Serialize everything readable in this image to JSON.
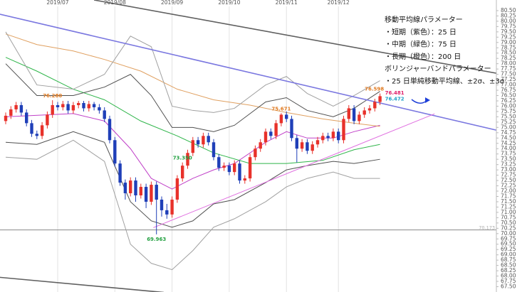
{
  "chart_data": {
    "type": "candlestick",
    "up_color": "#e8312a",
    "down_color": "#1f3fb8",
    "categories": [
      null,
      null,
      null,
      null,
      null,
      null,
      null,
      null,
      null,
      null,
      "2019/07",
      null,
      null,
      null,
      null,
      null,
      null,
      null,
      null,
      null,
      null,
      "2019/08",
      null,
      null,
      null,
      null,
      null,
      null,
      null,
      null,
      null,
      null,
      "2019/09",
      null,
      null,
      null,
      null,
      null,
      null,
      null,
      null,
      null,
      null,
      "2019/10",
      null,
      null,
      null,
      null,
      null,
      null,
      null,
      null,
      null,
      null,
      "2019/11",
      null,
      null,
      null,
      null,
      null,
      null,
      null,
      null,
      null,
      "2019/12",
      null,
      null,
      null,
      null,
      null,
      null,
      null,
      null
    ],
    "open": [
      75.3,
      75.55,
      75.85,
      76.05,
      75.7,
      75.2,
      74.7,
      74.6,
      75.1,
      75.6,
      76.05,
      75.95,
      76.1,
      75.8,
      76.05,
      76.15,
      75.9,
      76.1,
      75.95,
      75.8,
      75.4,
      74.4,
      73.3,
      72.4,
      71.9,
      72.5,
      71.8,
      72.2,
      71.5,
      72.3,
      71.6,
      71.1,
      70.9,
      71.6,
      72.6,
      73.2,
      73.8,
      74.4,
      74.2,
      74.6,
      74.3,
      73.6,
      73.1,
      73.2,
      72.9,
      73.3,
      72.5,
      72.6,
      73.6,
      74.0,
      74.3,
      74.8,
      74.6,
      75.2,
      75.6,
      75.4,
      74.5,
      74.0,
      74.3,
      73.9,
      74.2,
      74.4,
      74.6,
      74.5,
      74.8,
      74.4,
      75.4,
      75.9,
      75.3,
      75.6,
      75.8,
      75.9,
      76.2
    ],
    "high": [
      75.7,
      76.0,
      76.2,
      76.2,
      75.85,
      75.35,
      74.85,
      75.25,
      75.75,
      76.28,
      76.2,
      76.25,
      76.25,
      76.2,
      76.25,
      76.25,
      76.25,
      76.2,
      76.1,
      75.95,
      75.55,
      74.55,
      73.45,
      72.55,
      72.65,
      72.65,
      72.35,
      72.35,
      72.45,
      72.45,
      71.75,
      71.4,
      71.75,
      72.75,
      73.35,
      73.95,
      74.55,
      74.55,
      74.75,
      74.75,
      74.45,
      73.75,
      73.35,
      73.35,
      73.45,
      73.45,
      72.75,
      73.75,
      74.15,
      74.45,
      74.95,
      74.95,
      75.35,
      75.671,
      75.75,
      75.55,
      74.65,
      74.45,
      74.45,
      74.35,
      74.55,
      74.75,
      74.75,
      74.95,
      74.95,
      75.55,
      76.05,
      76.05,
      75.75,
      75.95,
      76.05,
      76.35,
      76.598
    ],
    "low": [
      75.15,
      75.4,
      75.7,
      75.55,
      75.05,
      74.55,
      74.45,
      74.45,
      74.95,
      75.45,
      75.8,
      75.8,
      75.65,
      75.65,
      75.9,
      75.75,
      75.75,
      75.8,
      75.65,
      75.25,
      74.25,
      73.15,
      72.25,
      71.6,
      71.75,
      71.5,
      71.65,
      71.2,
      71.35,
      69.963,
      70.8,
      70.7,
      70.75,
      71.45,
      72.45,
      73.05,
      73.65,
      74.05,
      74.05,
      74.15,
      73.45,
      72.95,
      72.95,
      72.75,
      72.75,
      72.35,
      72.35,
      72.45,
      73.45,
      73.85,
      74.15,
      74.45,
      74.45,
      75.05,
      75.25,
      74.35,
      73.35,
      73.85,
      73.75,
      73.75,
      74.05,
      74.25,
      74.35,
      74.35,
      74.25,
      74.25,
      75.25,
      75.15,
      75.15,
      75.45,
      75.65,
      75.75,
      76.05
    ],
    "close": [
      75.55,
      75.85,
      76.05,
      75.7,
      75.2,
      74.7,
      74.6,
      75.1,
      75.6,
      76.05,
      75.95,
      76.1,
      75.8,
      76.05,
      76.15,
      75.9,
      76.1,
      75.95,
      75.8,
      75.4,
      74.4,
      73.3,
      72.4,
      71.9,
      72.5,
      71.8,
      72.2,
      71.5,
      72.3,
      71.6,
      71.1,
      70.9,
      71.6,
      72.6,
      73.2,
      73.8,
      74.4,
      74.2,
      74.6,
      74.3,
      73.6,
      73.1,
      73.2,
      72.9,
      73.3,
      72.5,
      72.6,
      73.6,
      74.0,
      74.3,
      74.8,
      74.6,
      75.2,
      75.6,
      75.4,
      74.5,
      74.0,
      74.3,
      73.9,
      74.2,
      74.4,
      74.6,
      74.5,
      74.8,
      74.4,
      75.4,
      75.9,
      75.3,
      75.6,
      75.8,
      75.9,
      76.2,
      76.472
    ],
    "lines": [
      {
        "color": "#c040c8",
        "width": 1,
        "x": [
          0,
          13,
          19,
          24,
          28,
          32,
          36,
          40,
          44,
          50,
          54,
          58,
          63,
          67,
          72
        ],
        "values": [
          75.5,
          75.65,
          75.3,
          74.0,
          72.6,
          72.1,
          72.6,
          73.0,
          73.3,
          74.3,
          74.8,
          74.5,
          74.5,
          74.8,
          75.1
        ]
      },
      {
        "color": "#2fb54a",
        "width": 1,
        "x": [
          0,
          6,
          13,
          19,
          26,
          33,
          40,
          47,
          54,
          61,
          67,
          72
        ],
        "values": [
          78.3,
          77.65,
          76.8,
          76.3,
          75.3,
          74.6,
          73.8,
          73.3,
          73.3,
          73.45,
          73.95,
          74.2
        ]
      },
      {
        "color": "#e0a060",
        "width": 1,
        "x": [
          0,
          6,
          13,
          19,
          26,
          33,
          40,
          47,
          54,
          61,
          67,
          72
        ],
        "values": [
          79.4,
          78.9,
          78.6,
          78.2,
          77.65,
          76.8,
          76.3,
          76.05,
          75.7,
          75.4,
          75.2,
          75.05
        ]
      },
      {
        "color": "#a0a0a0",
        "width": 1,
        "x": [
          0,
          6,
          13,
          19,
          24,
          28,
          32,
          36,
          40,
          44,
          50,
          54,
          58,
          63,
          67,
          72
        ],
        "values": [
          79.5,
          77.0,
          76.8,
          77.5,
          79.3,
          78.8,
          76.0,
          75.8,
          75.7,
          75.9,
          77.0,
          77.4,
          76.6,
          76.0,
          76.5,
          77.2
        ]
      },
      {
        "color": "#505050",
        "width": 1,
        "x": [
          0,
          6,
          13,
          19,
          24,
          28,
          32,
          36,
          40,
          44,
          50,
          54,
          58,
          63,
          67,
          72
        ],
        "values": [
          78.0,
          76.5,
          76.5,
          76.9,
          77.5,
          76.5,
          75.0,
          75.0,
          74.8,
          75.1,
          76.2,
          76.4,
          75.8,
          75.5,
          75.9,
          76.7
        ]
      },
      {
        "color": "#505050",
        "width": 1,
        "x": [
          0,
          6,
          13,
          19,
          24,
          28,
          32,
          36,
          40,
          44,
          50,
          54,
          58,
          63,
          67,
          72
        ],
        "values": [
          74.3,
          74.2,
          74.8,
          74.3,
          71.5,
          70.6,
          70.3,
          70.6,
          71.4,
          71.6,
          72.4,
          73.0,
          73.2,
          73.4,
          73.3,
          73.5
        ]
      },
      {
        "color": "#a0a0a0",
        "width": 1,
        "x": [
          0,
          6,
          13,
          19,
          24,
          28,
          32,
          36,
          40,
          44,
          50,
          54,
          58,
          63,
          67,
          72
        ],
        "values": [
          73.6,
          73.5,
          74.4,
          73.4,
          69.5,
          68.6,
          68.3,
          69.2,
          70.3,
          70.7,
          71.5,
          72.2,
          72.6,
          72.9,
          72.6,
          72.6
        ]
      },
      {
        "color": "#7b78e0",
        "width": 1.6,
        "x": [
          -1.1,
          94.4
        ],
        "values": [
          80.33,
          74.87
        ]
      },
      {
        "color": "#606060",
        "width": 1.6,
        "x": [
          17,
          94.4
        ],
        "values": [
          81.0,
          77.55
        ]
      },
      {
        "color": "#606060",
        "width": 1.6,
        "x": [
          -1.1,
          30.4
        ],
        "values": [
          67.94,
          67.23
        ]
      },
      {
        "color": "#e070e0",
        "width": 1,
        "x": [
          28.4,
          82.5
        ],
        "values": [
          70.28,
          75.64
        ]
      }
    ],
    "annotations": [
      {
        "value": 76.28,
        "label": "76.280",
        "color": "#e07a20"
      },
      {
        "value": 69.963,
        "label": "69.963",
        "color": "#22a040"
      },
      {
        "value": 75.671,
        "label": "75.671",
        "color": "#e07a20"
      },
      {
        "value": 73.35,
        "label": "73.350",
        "color": "#22a040"
      },
      {
        "value": 76.598,
        "label": "76.598",
        "color": "#e07a20"
      }
    ],
    "price_labels": [
      {
        "value": 76.481,
        "label": "76.481",
        "color": "#e0206a"
      },
      {
        "value": 76.472,
        "label": "76.472",
        "color": "#1fa0c8"
      }
    ],
    "hline": {
      "value": 70.173,
      "label": "70.173"
    },
    "notes": [
      "移動平均線パラメーター",
      "・短期（紫色）：25 日",
      "・中期（緑色）：75 日",
      "・長期（橙色）：200 日",
      "ボリンジャーバンドパラメーター",
      "・25 日単純移動平均線、±2σ、±3σ"
    ],
    "ylim": [
      67.25,
      81.0
    ],
    "yticks": [
      {
        "value": 80.5,
        "label": "80.50"
      },
      {
        "value": 80.25,
        "label": "80.25"
      },
      {
        "value": 80,
        "label": "80.00"
      },
      {
        "value": 79.75,
        "label": "79.75"
      },
      {
        "value": 79.5,
        "label": "79.50"
      },
      {
        "value": 79.25,
        "label": "79.25"
      },
      {
        "value": 79,
        "label": "79.00"
      },
      {
        "value": 78.75,
        "label": "78.75"
      },
      {
        "value": 78.5,
        "label": "78.50"
      },
      {
        "value": 78.25,
        "label": "78.25"
      },
      {
        "value": 78,
        "label": "78.00"
      },
      {
        "value": 77.75,
        "label": "77.75"
      },
      {
        "value": 77.5,
        "label": "77.50"
      },
      {
        "value": 77.25,
        "label": "77.25"
      },
      {
        "value": 77,
        "label": "77.00"
      },
      {
        "value": 76.75,
        "label": "76.75"
      },
      {
        "value": 76.5,
        "label": "76.50"
      },
      {
        "value": 76.25,
        "label": "76.25"
      },
      {
        "value": 76,
        "label": "76.00"
      },
      {
        "value": 75.75,
        "label": "75.75"
      },
      {
        "value": 75.5,
        "label": "75.50"
      },
      {
        "value": 75.25,
        "label": "75.25"
      },
      {
        "value": 75,
        "label": "75.00"
      },
      {
        "value": 74.75,
        "label": "74.75"
      },
      {
        "value": 74.5,
        "label": "74.50"
      },
      {
        "value": 74.25,
        "label": "74.25"
      },
      {
        "value": 74,
        "label": "74.00"
      },
      {
        "value": 73.75,
        "label": "73.75"
      },
      {
        "value": 73.5,
        "label": "73.50"
      },
      {
        "value": 73.25,
        "label": "73.25"
      },
      {
        "value": 73,
        "label": "73.00"
      },
      {
        "value": 72.75,
        "label": "72.75"
      },
      {
        "value": 72.5,
        "label": "72.50"
      },
      {
        "value": 72.25,
        "label": "72.25"
      },
      {
        "value": 72,
        "label": "72.00"
      },
      {
        "value": 71.75,
        "label": "71.75"
      },
      {
        "value": 71.5,
        "label": "71.50"
      },
      {
        "value": 71.25,
        "label": "71.25"
      },
      {
        "value": 71,
        "label": "71.00"
      },
      {
        "value": 70.75,
        "label": "70.75"
      },
      {
        "value": 70.5,
        "label": "70.50"
      },
      {
        "value": 70.25,
        "label": "70.25"
      },
      {
        "value": 70,
        "label": "70.00"
      },
      {
        "value": 69.75,
        "label": "69.75"
      },
      {
        "value": 69.5,
        "label": "69.50"
      },
      {
        "value": 69.25,
        "label": "69.25"
      },
      {
        "value": 69,
        "label": "69.00"
      },
      {
        "value": 68.75,
        "label": "68.75"
      },
      {
        "value": 68.5,
        "label": "68.50"
      },
      {
        "value": 68.25,
        "label": "68.25"
      },
      {
        "value": 68,
        "label": "68.00"
      },
      {
        "value": 67.75,
        "label": "67.75"
      },
      {
        "value": 67.5,
        "label": "67.50"
      }
    ]
  }
}
